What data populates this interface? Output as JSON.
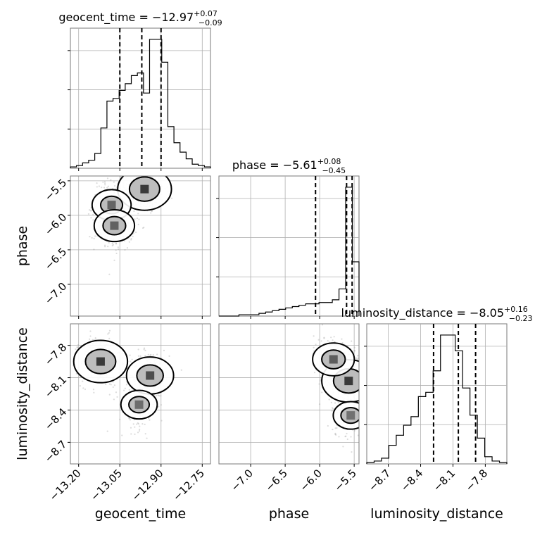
{
  "chart_data": {
    "type": "corner",
    "parameters": [
      {
        "name": "geocent_time",
        "label": "geocent_time",
        "title": "geocent_time = −12.97^{+0.07}_{−0.09}",
        "median": -12.97,
        "err_plus": 0.07,
        "err_minus": 0.09,
        "quantiles": [
          -13.05,
          -12.97,
          -12.9
        ],
        "range": [
          -13.23,
          -12.72
        ],
        "ticks": [
          -13.2,
          -13.05,
          -12.9,
          -12.75
        ],
        "tick_labels": [
          "−13.20",
          "−13.05",
          "−12.90",
          "−12.75"
        ],
        "hist": [
          1,
          2,
          4,
          6,
          11,
          30,
          50,
          52,
          58,
          63,
          69,
          71,
          56,
          96,
          96,
          79,
          31,
          19,
          12,
          7,
          3,
          2,
          1
        ]
      },
      {
        "name": "phase",
        "label": "phase",
        "title": "phase = −5.61^{+0.08}_{−0.45}",
        "median": -5.61,
        "err_plus": 0.08,
        "err_minus": 0.45,
        "quantiles": [
          -6.06,
          -5.61,
          -5.53
        ],
        "range": [
          -7.46,
          -5.43
        ],
        "ticks": [
          -7.0,
          -6.5,
          -6.0,
          -5.5
        ],
        "tick_labels": [
          "−7.0",
          "−6.5",
          "−6.0",
          "−5.5"
        ],
        "hist": [
          0,
          0,
          0,
          1,
          1,
          1,
          2,
          3,
          4,
          5,
          6,
          7,
          8,
          9,
          9,
          10,
          10,
          12,
          20,
          95,
          40
        ]
      },
      {
        "name": "luminosity_distance",
        "label": "luminosity_distance",
        "title": "luminosity_distance = −8.05^{+0.16}_{−0.23}",
        "median": -8.05,
        "err_plus": 0.16,
        "err_minus": 0.23,
        "quantiles": [
          -8.28,
          -8.05,
          -7.89
        ],
        "range": [
          -8.9,
          -7.6
        ],
        "ticks": [
          -8.7,
          -8.4,
          -8.1,
          -7.8
        ],
        "tick_labels": [
          "−8.7",
          "−8.4",
          "−8.1",
          "−7.8"
        ],
        "hist": [
          1,
          2,
          4,
          13,
          20,
          27,
          33,
          47,
          50,
          65,
          90,
          90,
          79,
          53,
          34,
          18,
          5,
          2,
          1
        ]
      }
    ],
    "pairs": [
      {
        "x": "geocent_time",
        "y": "phase",
        "density_peaks": [
          {
            "x": -12.96,
            "y": -5.62,
            "weight": 1.0
          },
          {
            "x": -13.08,
            "y": -5.85,
            "weight": 0.45
          },
          {
            "x": -13.07,
            "y": -6.15,
            "weight": 0.5
          }
        ]
      },
      {
        "x": "geocent_time",
        "y": "luminosity_distance",
        "density_peaks": [
          {
            "x": -13.12,
            "y": -7.95,
            "weight": 1.0
          },
          {
            "x": -12.94,
            "y": -8.08,
            "weight": 0.75
          },
          {
            "x": -12.98,
            "y": -8.35,
            "weight": 0.35
          }
        ]
      },
      {
        "x": "phase",
        "y": "luminosity_distance",
        "density_peaks": [
          {
            "x": -5.58,
            "y": -8.13,
            "weight": 1.0
          },
          {
            "x": -5.8,
            "y": -7.93,
            "weight": 0.55
          },
          {
            "x": -5.55,
            "y": -8.45,
            "weight": 0.3
          }
        ]
      }
    ],
    "grid": true,
    "colors": {
      "hist": "#000000",
      "points": "#9a9a9a",
      "contour": "#000000",
      "density": "#3a3a3a"
    }
  }
}
